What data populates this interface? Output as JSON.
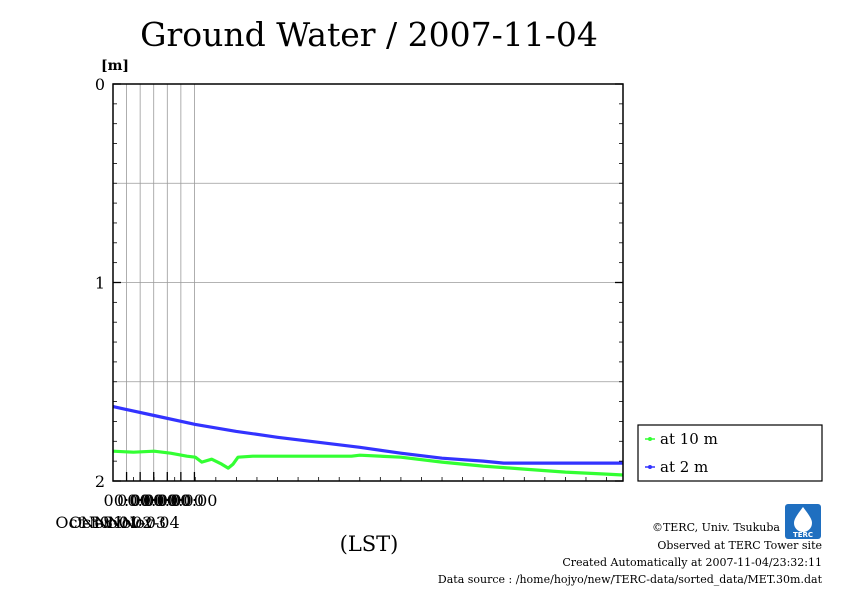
{
  "chart_data": {
    "type": "line",
    "title": "Ground Water / 2007-11-04",
    "ylabel": "[m]",
    "xlabel": "(LST)",
    "ylim": [
      2,
      0
    ],
    "y_inverted": true,
    "y_ticks": [
      "0",
      "1",
      "2"
    ],
    "x_ticks": [
      {
        "time": "00:00",
        "date": "Oct-30",
        "label_x": 0.165
      },
      {
        "time": "00:00",
        "date": "Oct-31",
        "label_x": 0.33
      },
      {
        "time": "00:00",
        "date": "Nov-01",
        "label_x": 0.495
      },
      {
        "time": "00:00",
        "date": "Nov-02",
        "label_x": 0.66
      },
      {
        "time": "00:00",
        "date": "Nov-03",
        "label_x": 0.825
      },
      {
        "time": "00:00",
        "date": "Nov-04",
        "label_x": 0.99
      }
    ],
    "grid": true,
    "legend_position": "right",
    "series": [
      {
        "name": "at 10 m",
        "color": "#33ff33",
        "points": [
          [
            0,
            1.85
          ],
          [
            0.25,
            1.855
          ],
          [
            0.5,
            1.85
          ],
          [
            0.7,
            1.86
          ],
          [
            0.9,
            1.875
          ],
          [
            1.0,
            1.88
          ],
          [
            1.08,
            1.905
          ],
          [
            1.2,
            1.89
          ],
          [
            1.32,
            1.915
          ],
          [
            1.4,
            1.935
          ],
          [
            1.46,
            1.915
          ],
          [
            1.52,
            1.88
          ],
          [
            1.7,
            1.875
          ],
          [
            2.0,
            1.875
          ],
          [
            2.5,
            1.875
          ],
          [
            2.9,
            1.875
          ],
          [
            3.0,
            1.87
          ],
          [
            3.5,
            1.88
          ],
          [
            4.0,
            1.905
          ],
          [
            4.5,
            1.925
          ],
          [
            5.0,
            1.94
          ],
          [
            5.5,
            1.955
          ],
          [
            6.0,
            1.965
          ],
          [
            6.2,
            1.97
          ]
        ]
      },
      {
        "name": "at 2 m",
        "color": "#3333ff",
        "points": [
          [
            0,
            1.625
          ],
          [
            0.5,
            1.67
          ],
          [
            1.0,
            1.715
          ],
          [
            1.5,
            1.75
          ],
          [
            2.0,
            1.78
          ],
          [
            2.5,
            1.805
          ],
          [
            3.0,
            1.83
          ],
          [
            3.5,
            1.86
          ],
          [
            4.0,
            1.885
          ],
          [
            4.5,
            1.9
          ],
          [
            4.75,
            1.91
          ],
          [
            5.0,
            1.91
          ],
          [
            5.5,
            1.91
          ],
          [
            6.0,
            1.91
          ],
          [
            6.2,
            1.91
          ]
        ]
      }
    ]
  },
  "credits": {
    "copyright": "©TERC, Univ. Tsukuba",
    "observed": "Observed at TERC Tower site",
    "created": "Created Automatically at 2007-11-04/23:32:11",
    "source": "Data source : /home/hojyo/new/TERC-data/sorted_data/MET.30m.dat",
    "logo_text": "TERC"
  }
}
